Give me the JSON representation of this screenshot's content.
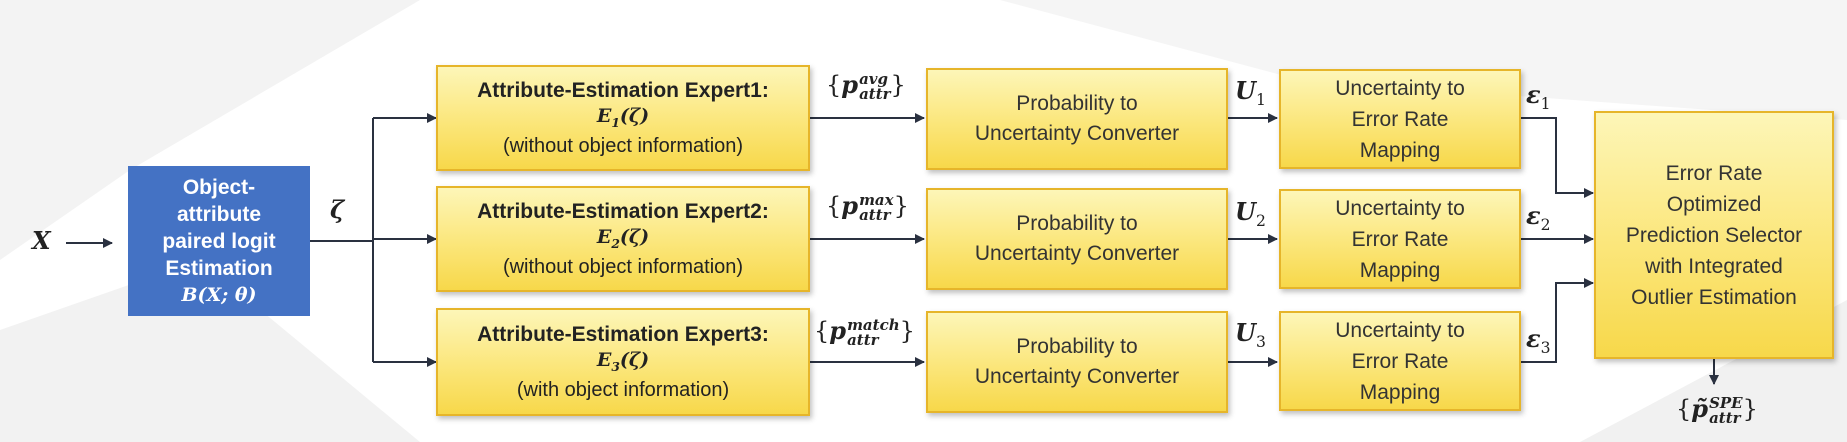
{
  "colors": {
    "box_fill": "#fbe67a",
    "box_border": "#e6b52a",
    "blue_box": "#4472c4",
    "arrow": "#2a3140"
  },
  "input": {
    "symbol": "X"
  },
  "blue_box": {
    "lines": [
      "Object-",
      "attribute",
      "paired logit",
      "Estimation"
    ],
    "function": "B(X; θ)"
  },
  "zeta": "ζ",
  "experts": [
    {
      "title": "Attribute-Estimation Expert1:",
      "fn_letter": "E",
      "fn_index": "1",
      "fn_arg": "(ζ)",
      "note": "(without object information)",
      "out_sup": "avg",
      "out_sub": "attr"
    },
    {
      "title": "Attribute-Estimation Expert2:",
      "fn_letter": "E",
      "fn_index": "2",
      "fn_arg": "(ζ)",
      "note": "(without object information)",
      "out_sup": "max",
      "out_sub": "attr"
    },
    {
      "title": "Attribute-Estimation Expert3:",
      "fn_letter": "E",
      "fn_index": "3",
      "fn_arg": "(ζ)",
      "note": "(with object information)",
      "out_sup": "match",
      "out_sub": "attr"
    }
  ],
  "converter": {
    "line1": "Probability to",
    "line2": "Uncertainty Converter"
  },
  "uncertainty": [
    {
      "letter": "U",
      "index": "1"
    },
    {
      "letter": "U",
      "index": "2"
    },
    {
      "letter": "U",
      "index": "3"
    }
  ],
  "mapping": {
    "line1": "Uncertainty to",
    "line2": "Error Rate",
    "line3": "Mapping"
  },
  "error": [
    {
      "letter": "ε",
      "index": "1"
    },
    {
      "letter": "ε",
      "index": "2"
    },
    {
      "letter": "ε",
      "index": "3"
    }
  ],
  "selector": {
    "lines": [
      "Error Rate",
      "Optimized",
      "Prediction Selector",
      "with Integrated",
      "Outlier Estimation"
    ]
  },
  "output": {
    "letter": "p̃",
    "sup": "SPE",
    "sub": "attr"
  },
  "brace_open": "{",
  "brace_close": "}"
}
